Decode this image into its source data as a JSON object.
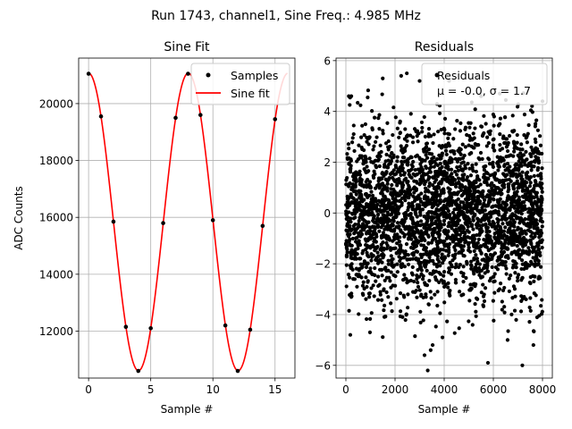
{
  "figure": {
    "suptitle": "Run 1743, channel1, Sine Freq.: 4.985 MHz"
  },
  "chart_data": [
    {
      "type": "line",
      "title": "Sine Fit",
      "xlabel": "Sample #",
      "ylabel": "ADC Counts",
      "xlim": [
        -0.8,
        16.6
      ],
      "ylim": [
        10350,
        21600
      ],
      "xticks": [
        0,
        5,
        10,
        15
      ],
      "xtick_labels": [
        "0",
        "5",
        "10",
        "15"
      ],
      "yticks": [
        12000,
        14000,
        16000,
        18000,
        20000
      ],
      "ytick_labels": [
        "12000",
        "14000",
        "16000",
        "18000",
        "20000"
      ],
      "grid": true,
      "legend_position": "upper right",
      "series": [
        {
          "name": "Samples",
          "kind": "scatter",
          "color": "#000000",
          "x": [
            0,
            1,
            2,
            3,
            4,
            5,
            6,
            7,
            8,
            9,
            10,
            11,
            12,
            13,
            14,
            15
          ],
          "y": [
            21050,
            19550,
            15850,
            12150,
            10600,
            12100,
            15800,
            19500,
            21050,
            19600,
            15900,
            12200,
            10600,
            12050,
            15700,
            19450
          ]
        },
        {
          "name": "Sine fit",
          "kind": "line",
          "color": "#ff0000",
          "model": {
            "offset": 15840,
            "amplitude": 5230,
            "period_samples": 8.02,
            "phase": 0.0
          },
          "x_range": [
            0,
            16
          ]
        }
      ]
    },
    {
      "type": "scatter",
      "title": "Residuals",
      "xlabel": "Sample #",
      "ylabel": "",
      "xlim": [
        -400,
        8400
      ],
      "ylim": [
        -6.5,
        6.1
      ],
      "xticks": [
        0,
        2000,
        4000,
        6000,
        8000
      ],
      "xtick_labels": [
        "0",
        "2000",
        "4000",
        "6000",
        "8000"
      ],
      "yticks": [
        -6,
        -4,
        -2,
        0,
        2,
        4,
        6
      ],
      "ytick_labels": [
        "−6",
        "−4",
        "−2",
        "0",
        "2",
        "4",
        "6"
      ],
      "grid": true,
      "legend_position": "upper right",
      "series": [
        {
          "name": "Residuals",
          "color": "#000000",
          "n_points": 8000,
          "x_range": [
            0,
            8000
          ],
          "mean": 0.0,
          "std": 1.7,
          "sample": [
            [
              3330,
              -6.2
            ],
            [
              5780,
              -5.9
            ],
            [
              7180,
              -6.0
            ],
            [
              3200,
              -5.6
            ],
            [
              3450,
              -5.4
            ],
            [
              3530,
              -5.2
            ],
            [
              180,
              -4.8
            ],
            [
              980,
              -4.7
            ],
            [
              6580,
              -5.0
            ],
            [
              3930,
              -4.9
            ],
            [
              7630,
              -5.2
            ],
            [
              2250,
              5.4
            ],
            [
              2480,
              5.5
            ],
            [
              3000,
              5.2
            ],
            [
              1500,
              5.3
            ],
            [
              4200,
              5.2
            ],
            [
              120,
              4.6
            ],
            [
              220,
              4.6
            ],
            [
              6260,
              4.7
            ],
            [
              8000,
              4.4
            ],
            [
              5500,
              4.6
            ]
          ],
          "legend_text": "μ = -0.0, σ = 1.7"
        }
      ]
    }
  ]
}
